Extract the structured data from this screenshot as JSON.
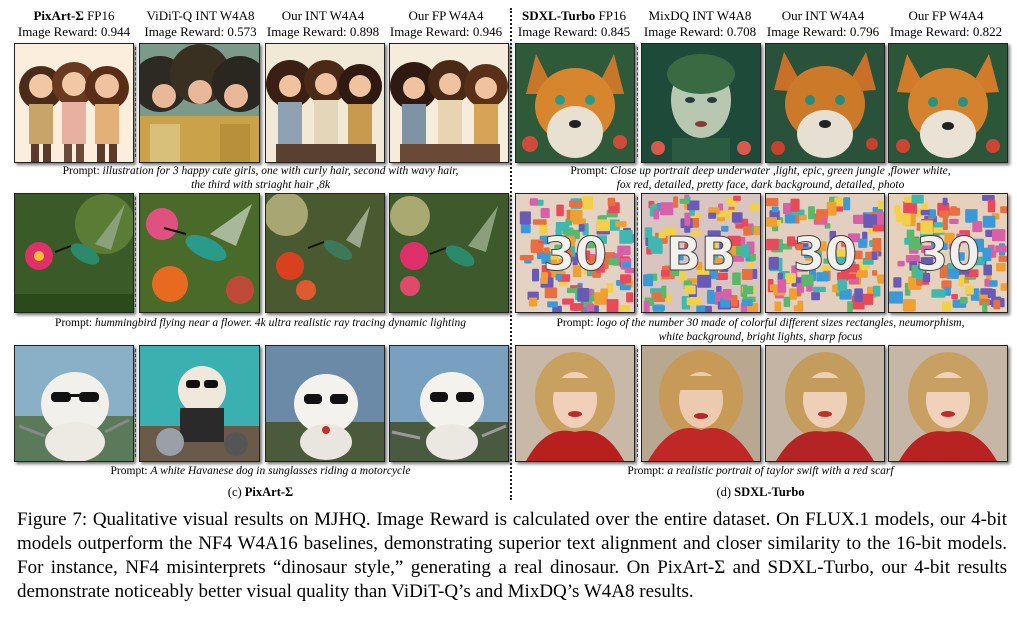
{
  "left_panel": {
    "columns": [
      {
        "title_bold": "PixArt-Σ",
        "title_rest": " FP16",
        "reward": "Image Reward: 0.944"
      },
      {
        "title_bold": "",
        "title_rest": "ViDiT-Q INT W4A8",
        "reward": "Image Reward: 0.573"
      },
      {
        "title_bold": "",
        "title_rest": "Our INT W4A4",
        "reward": "Image Reward: 0.898"
      },
      {
        "title_bold": "",
        "title_rest": "Our FP W4A4",
        "reward": "Image Reward: 0.946"
      }
    ],
    "prompts": [
      {
        "label": "Prompt: ",
        "line1": "illustration for 3 happy cute girls, one with curly hair, second with wavy hair,",
        "line2": "the third with striaght hair ,8k"
      },
      {
        "label": "Prompt: ",
        "line1": "hummingbird flying near a flower. 4k ultra realistic ray tracing dynamic lighting",
        "line2": ""
      },
      {
        "label": "Prompt: ",
        "line1": "A white Havanese dog in sunglasses riding a motorcycle",
        "line2": ""
      }
    ],
    "subcaption_prefix": "(c) ",
    "subcaption_bold": "PixArt-Σ"
  },
  "right_panel": {
    "columns": [
      {
        "title_bold": "SDXL-Turbo",
        "title_rest": " FP16",
        "reward": "Image Reward: 0.845"
      },
      {
        "title_bold": "",
        "title_rest": "MixDQ INT W4A8",
        "reward": "Image Reward: 0.708"
      },
      {
        "title_bold": "",
        "title_rest": "Our INT W4A4",
        "reward": "Image Reward: 0.796"
      },
      {
        "title_bold": "",
        "title_rest": "Our FP W4A4",
        "reward": "Image Reward: 0.822"
      }
    ],
    "prompts": [
      {
        "label": "Prompt: ",
        "line1": "Close up portrait deep underwater ,light, epic, green jungle ,flower white,",
        "line2": "fox red, detailed, pretty face, dark background, detailed, photo"
      },
      {
        "label": "Prompt: ",
        "line1": "logo of the number 30 made of colorful different sizes rectangles, neumorphism,",
        "line2": "white background, bright lights, sharp focus"
      },
      {
        "label": "Prompt: ",
        "line1": "a realistic portrait of taylor swift with a red scarf",
        "line2": ""
      }
    ],
    "subcaption_prefix": "(d) ",
    "subcaption_bold": "SDXL-Turbo",
    "logo_texts": [
      "30",
      "BB",
      "30",
      "30"
    ]
  },
  "figure_caption": "Figure 7: Qualitative visual results on MJHQ. Image Reward is calculated over the entire dataset. On FLUX.1 models, our 4-bit models outperform the NF4 W4A16 baselines, demonstrating superior text alignment and closer similarity to the 16-bit models. For instance, NF4 misinterprets “dinosaur style,” generating a real dinosaur. On PixArt-Σ and SDXL-Turbo, our 4-bit results demonstrate noticeably better visual quality than ViDiT-Q’s and MixDQ’s W4A8 results."
}
